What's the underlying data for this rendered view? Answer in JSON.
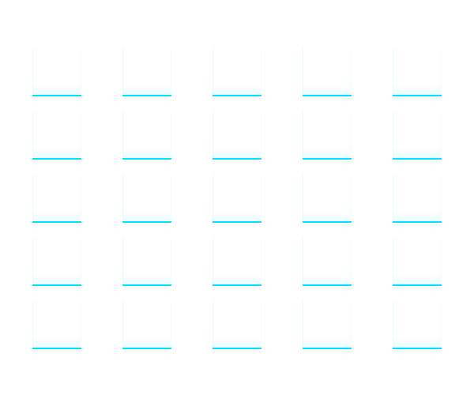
{
  "tiles": {
    "rows": 5,
    "columns": 5,
    "accent_color": "#00e5ff",
    "background_color": "#ffffff"
  }
}
